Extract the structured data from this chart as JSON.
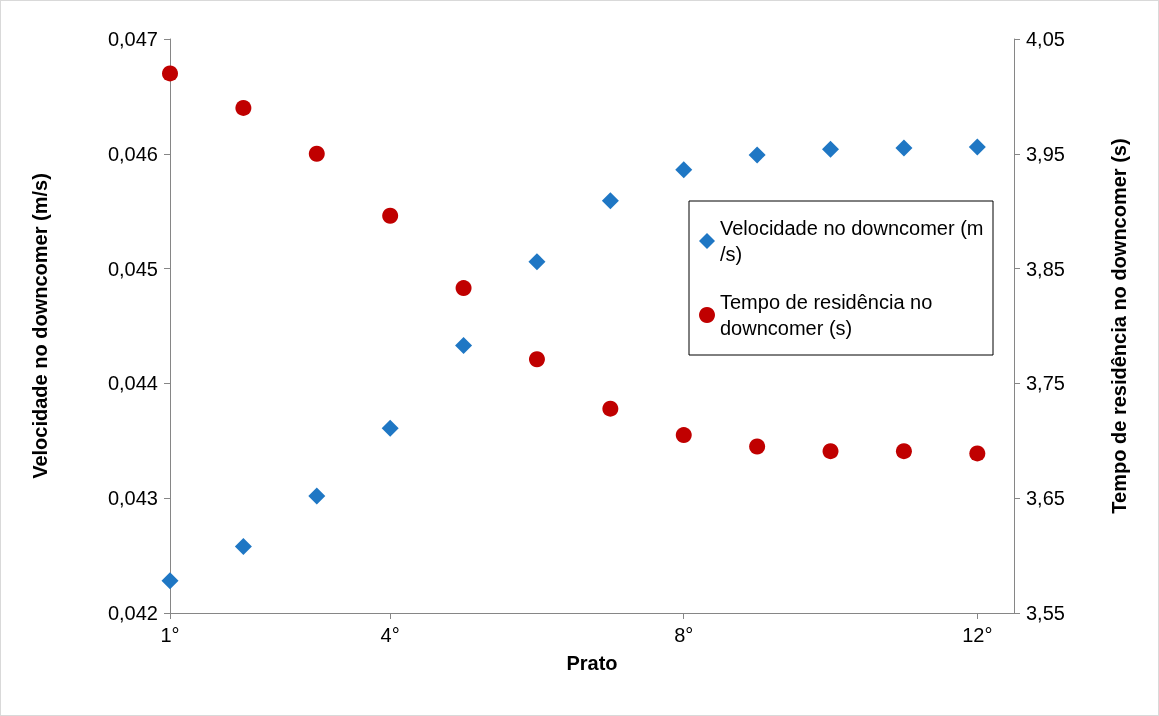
{
  "chart_data": {
    "type": "scatter",
    "xlabel": "Prato",
    "ylabel": "Velocidade no downcomer (m/s)",
    "y2label": "Tempo de residência no downcomer (s)",
    "x": [
      1,
      2,
      3,
      4,
      5,
      6,
      7,
      8,
      9,
      10,
      11,
      12
    ],
    "xlim": [
      1,
      12.5
    ],
    "xticks": [
      {
        "value": 1,
        "label": "1°"
      },
      {
        "value": 4,
        "label": "4°"
      },
      {
        "value": 8,
        "label": "8°"
      },
      {
        "value": 12,
        "label": "12°"
      }
    ],
    "ylim": [
      0.042,
      0.047
    ],
    "yticks": [
      {
        "value": 0.042,
        "label": "0,042"
      },
      {
        "value": 0.043,
        "label": "0,043"
      },
      {
        "value": 0.044,
        "label": "0,044"
      },
      {
        "value": 0.045,
        "label": "0,045"
      },
      {
        "value": 0.046,
        "label": "0,046"
      },
      {
        "value": 0.047,
        "label": "0,047"
      }
    ],
    "y2lim": [
      3.55,
      4.05
    ],
    "y2ticks": [
      {
        "value": 3.55,
        "label": "3,55"
      },
      {
        "value": 3.65,
        "label": "3,65"
      },
      {
        "value": 3.75,
        "label": "3,75"
      },
      {
        "value": 3.85,
        "label": "3,85"
      },
      {
        "value": 3.95,
        "label": "3,95"
      },
      {
        "value": 4.05,
        "label": "4,05"
      }
    ],
    "series": [
      {
        "name": "Velocidade no downcomer (m/s)",
        "color": "#1f77c4",
        "marker": "diamond",
        "values": [
          0.04228,
          0.04258,
          0.04302,
          0.04361,
          0.04433,
          0.04506,
          0.04559,
          0.04586,
          0.04599,
          0.04604,
          0.04605,
          0.04606
        ]
      },
      {
        "name": "Tempo de residência no downcomer (s)",
        "color": "#c00000",
        "marker": "circle",
        "axis": "y2",
        "values": [
          4.02,
          3.99,
          3.95,
          3.896,
          3.833,
          3.771,
          3.728,
          3.705,
          3.695,
          3.691,
          3.691,
          3.689
        ]
      }
    ],
    "grid": false,
    "legend": "right"
  }
}
